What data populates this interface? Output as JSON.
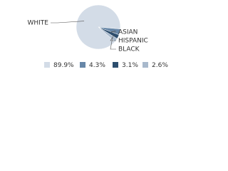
{
  "chart_data": {
    "type": "pie",
    "categories": [
      "WHITE",
      "ASIAN",
      "HISPANIC",
      "BLACK"
    ],
    "values": [
      89.9,
      4.3,
      3.1,
      2.6
    ],
    "value_labels": [
      "89.9%",
      "4.3%",
      "3.1%",
      "2.6%"
    ],
    "colors": [
      "#d3dce7",
      "#6787a8",
      "#2d4e6e",
      "#a8b9cc"
    ]
  }
}
